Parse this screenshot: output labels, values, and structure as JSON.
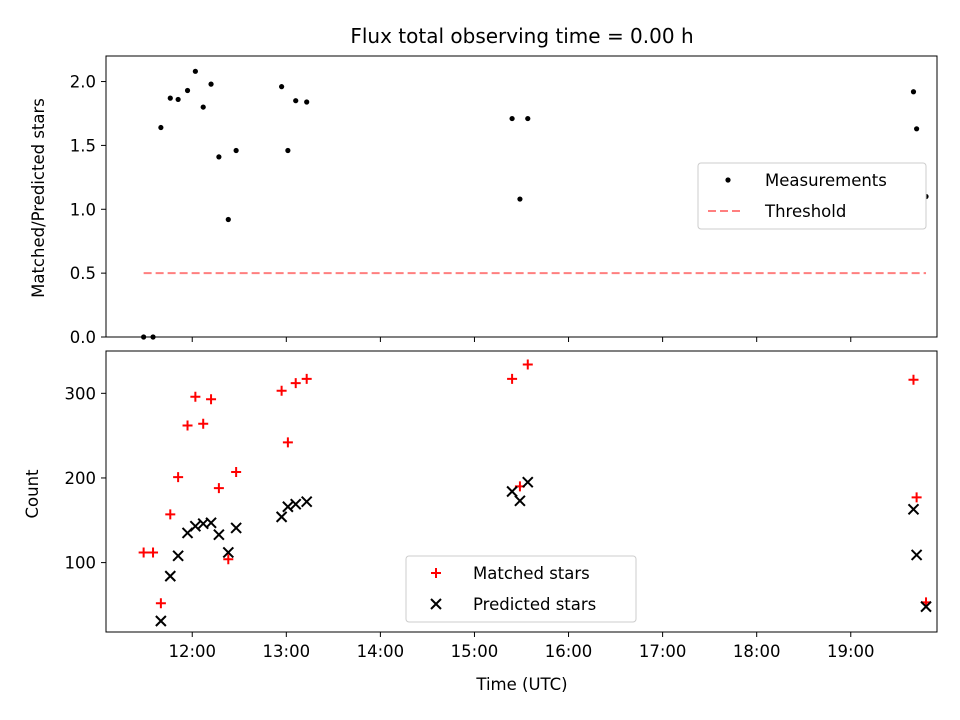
{
  "chart_data": [
    {
      "type": "scatter",
      "title": "Flux total observing time = 0.00 h",
      "xlabel": "",
      "ylabel": "Matched/Predicted stars",
      "ylim": [
        0,
        2.2
      ],
      "y_ticks": [
        "0.0",
        "0.5",
        "1.0",
        "1.5",
        "2.0"
      ],
      "legend_position": "center-right",
      "series": [
        {
          "name": "Measurements",
          "color": "#000000",
          "marker": "dot",
          "points": [
            {
              "x": "11:29",
              "y": 0.0
            },
            {
              "x": "11:35",
              "y": 0.0
            },
            {
              "x": "11:40",
              "y": 1.64
            },
            {
              "x": "11:46",
              "y": 1.87
            },
            {
              "x": "11:51",
              "y": 1.86
            },
            {
              "x": "11:57",
              "y": 1.93
            },
            {
              "x": "12:02",
              "y": 2.08
            },
            {
              "x": "12:07",
              "y": 1.8
            },
            {
              "x": "12:12",
              "y": 1.98
            },
            {
              "x": "12:17",
              "y": 1.41
            },
            {
              "x": "12:23",
              "y": 0.92
            },
            {
              "x": "12:28",
              "y": 1.46
            },
            {
              "x": "12:57",
              "y": 1.96
            },
            {
              "x": "13:01",
              "y": 1.46
            },
            {
              "x": "13:06",
              "y": 1.85
            },
            {
              "x": "13:13",
              "y": 1.84
            },
            {
              "x": "15:24",
              "y": 1.71
            },
            {
              "x": "15:29",
              "y": 1.08
            },
            {
              "x": "15:34",
              "y": 1.71
            },
            {
              "x": "19:40",
              "y": 1.92
            },
            {
              "x": "19:42",
              "y": 1.63
            },
            {
              "x": "19:48",
              "y": 1.1
            }
          ]
        },
        {
          "name": "Threshold",
          "color": "#ff7f7f",
          "style": "dashed",
          "x": [
            "11:29",
            "19:48"
          ],
          "y": [
            0.5,
            0.5
          ]
        }
      ]
    },
    {
      "type": "scatter",
      "xlabel": "Time (UTC)",
      "ylabel": "Count",
      "ylim": [
        18,
        350
      ],
      "y_ticks": [
        "100",
        "200",
        "300"
      ],
      "x_ticks": [
        "12:00",
        "13:00",
        "14:00",
        "15:00",
        "16:00",
        "17:00",
        "18:00",
        "19:00"
      ],
      "legend_position": "lower-center",
      "series": [
        {
          "name": "Matched stars",
          "color": "#ff0000",
          "marker": "plus",
          "points": [
            {
              "x": "11:29",
              "y": 112
            },
            {
              "x": "11:35",
              "y": 112
            },
            {
              "x": "11:40",
              "y": 52
            },
            {
              "x": "11:46",
              "y": 157
            },
            {
              "x": "11:51",
              "y": 201
            },
            {
              "x": "11:57",
              "y": 262
            },
            {
              "x": "12:02",
              "y": 296
            },
            {
              "x": "12:07",
              "y": 264
            },
            {
              "x": "12:12",
              "y": 293
            },
            {
              "x": "12:17",
              "y": 188
            },
            {
              "x": "12:23",
              "y": 104
            },
            {
              "x": "12:28",
              "y": 207
            },
            {
              "x": "12:57",
              "y": 303
            },
            {
              "x": "13:01",
              "y": 242
            },
            {
              "x": "13:06",
              "y": 312
            },
            {
              "x": "13:13",
              "y": 317
            },
            {
              "x": "15:24",
              "y": 317
            },
            {
              "x": "15:29",
              "y": 190
            },
            {
              "x": "15:34",
              "y": 334
            },
            {
              "x": "19:40",
              "y": 316
            },
            {
              "x": "19:42",
              "y": 177
            },
            {
              "x": "19:48",
              "y": 53
            }
          ]
        },
        {
          "name": "Predicted stars",
          "color": "#000000",
          "marker": "x",
          "points": [
            {
              "x": "11:40",
              "y": 31
            },
            {
              "x": "11:46",
              "y": 84
            },
            {
              "x": "11:51",
              "y": 108
            },
            {
              "x": "11:57",
              "y": 135
            },
            {
              "x": "12:02",
              "y": 143
            },
            {
              "x": "12:07",
              "y": 146
            },
            {
              "x": "12:12",
              "y": 147
            },
            {
              "x": "12:17",
              "y": 133
            },
            {
              "x": "12:23",
              "y": 112
            },
            {
              "x": "12:28",
              "y": 141
            },
            {
              "x": "12:57",
              "y": 154
            },
            {
              "x": "13:01",
              "y": 166
            },
            {
              "x": "13:06",
              "y": 169
            },
            {
              "x": "13:13",
              "y": 172
            },
            {
              "x": "15:24",
              "y": 184
            },
            {
              "x": "15:29",
              "y": 173
            },
            {
              "x": "15:34",
              "y": 195
            },
            {
              "x": "19:40",
              "y": 163
            },
            {
              "x": "19:42",
              "y": 109
            },
            {
              "x": "19:48",
              "y": 48
            }
          ]
        }
      ]
    }
  ]
}
